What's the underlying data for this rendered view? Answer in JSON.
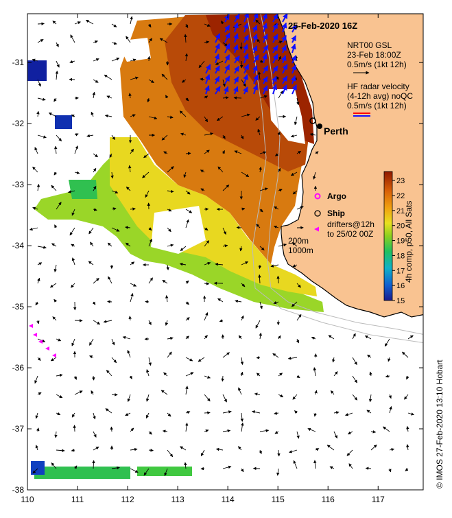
{
  "header": {
    "date_label": "25-Feb-2020 16Z"
  },
  "axes": {
    "x_ticks": [
      "110",
      "111",
      "112",
      "113",
      "114",
      "115",
      "116",
      "117"
    ],
    "y_ticks": [
      "-31",
      "-32",
      "-33",
      "-34",
      "-35",
      "-36",
      "-37",
      "-38"
    ],
    "lon_range": [
      110,
      117.9
    ],
    "lat_range": [
      -38,
      -30.2
    ]
  },
  "legend": {
    "gsl_lines": [
      "NRT00 GSL",
      "23-Feb 18:00Z",
      "0.5m/s (1kt 12h)"
    ],
    "radar_lines": [
      "HF radar velocity",
      "(4-12h avg) noQC",
      "0.5m/s (1kt 12h)"
    ],
    "city": "Perth",
    "argo": "Argo",
    "ship": "Ship",
    "drifters_lines": [
      "drifters@12h",
      "to 25/02 00Z"
    ],
    "depth_lines": [
      "200m",
      "1000m"
    ]
  },
  "colorbar": {
    "label": "4h comp, p50, All Sats",
    "ticks": [
      "15",
      "16",
      "17",
      "18",
      "19",
      "20",
      "21",
      "22",
      "23"
    ],
    "range": [
      15,
      23.6
    ]
  },
  "credit": "© IMOS 27-Feb-2020 13:10 Hobart",
  "colors": {
    "land": "#f9c391",
    "warm": "#a82800",
    "mid": "#d86a0a",
    "cool": "#70c828",
    "gsl_arrow": "#000000",
    "radar_red": "#ff0000",
    "radar_blue": "#1010ff",
    "argo": "#ff00ff",
    "drifter": "#ff00ff",
    "contour": "#c8c8c8"
  }
}
